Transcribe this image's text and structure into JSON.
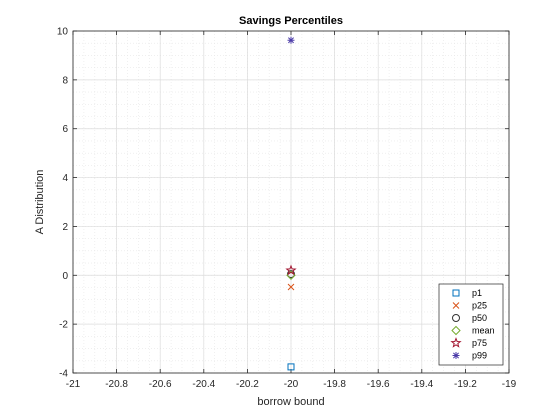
{
  "chart_data": {
    "type": "scatter",
    "title": "Savings Percentiles",
    "xlabel": "borrow bound",
    "ylabel": "A Distribution",
    "xlim": [
      -21,
      -19
    ],
    "ylim": [
      -4,
      10
    ],
    "xticks": [
      -21,
      -20.8,
      -20.6,
      -20.4,
      -20.2,
      -20,
      -19.8,
      -19.6,
      -19.4,
      -19.2,
      -19
    ],
    "xtick_labels": [
      "-21",
      "-20.8",
      "-20.6",
      "-20.4",
      "-20.2",
      "-20",
      "-19.8",
      "-19.6",
      "-19.4",
      "-19.2",
      "-19"
    ],
    "yticks": [
      -4,
      -2,
      0,
      2,
      4,
      6,
      8,
      10
    ],
    "ytick_labels": [
      "-4",
      "-2",
      "0",
      "2",
      "4",
      "6",
      "8",
      "10"
    ],
    "grid": true,
    "minor_grid": true,
    "legend_position": "bottom-right",
    "series": [
      {
        "name": "p1",
        "marker": "square",
        "color": "#0072BD",
        "x": [
          -20
        ],
        "y": [
          -3.75
        ]
      },
      {
        "name": "p25",
        "marker": "x",
        "color": "#D95319",
        "x": [
          -20
        ],
        "y": [
          -0.48
        ]
      },
      {
        "name": "p50",
        "marker": "circle",
        "color": "#333333",
        "x": [
          -20
        ],
        "y": [
          0.05
        ]
      },
      {
        "name": "mean",
        "marker": "diamond",
        "color": "#77AC30",
        "x": [
          -20
        ],
        "y": [
          0.0
        ]
      },
      {
        "name": "p75",
        "marker": "pentagram",
        "color": "#A2142F",
        "x": [
          -20
        ],
        "y": [
          0.2
        ]
      },
      {
        "name": "p99",
        "marker": "asterisk",
        "color": "#4B3BA8",
        "x": [
          -20
        ],
        "y": [
          9.62
        ]
      }
    ]
  }
}
